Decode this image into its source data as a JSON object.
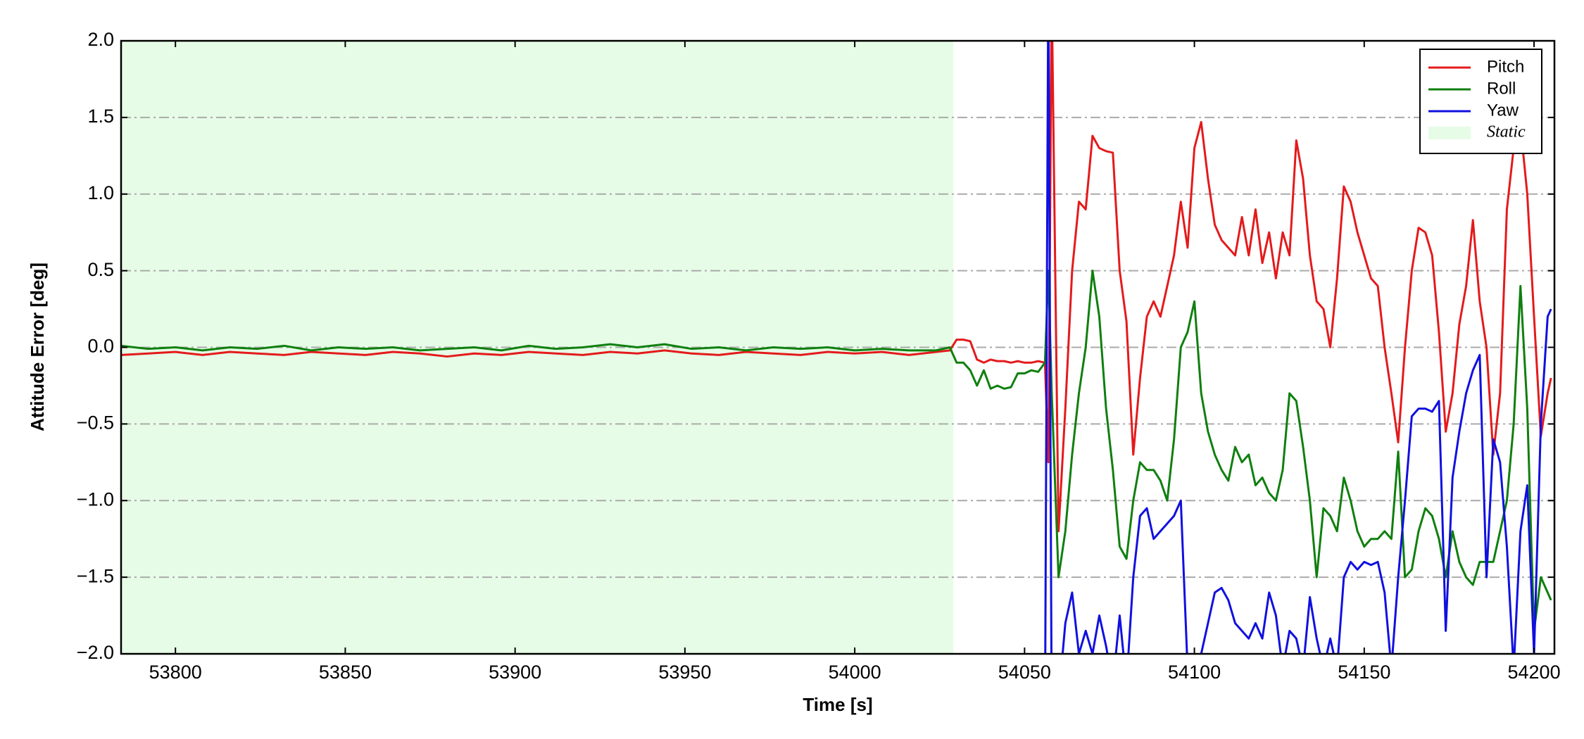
{
  "chart_data": {
    "type": "line",
    "x_label": "Time [s]",
    "y_label": "Attitude Error [deg]",
    "xlim": [
      53784,
      54206
    ],
    "ylim": [
      -2,
      2
    ],
    "xticks": [
      53800,
      53850,
      53900,
      53950,
      54000,
      54050,
      54100,
      54150,
      54200
    ],
    "yticks": [
      {
        "value": -2,
        "label": "−2.0"
      },
      {
        "value": -1.5,
        "label": "−1.5"
      },
      {
        "value": -1,
        "label": "−1.0"
      },
      {
        "value": -0.5,
        "label": "−0.5"
      },
      {
        "value": 0,
        "label": "0.0"
      },
      {
        "value": 0.5,
        "label": "0.5"
      },
      {
        "value": 1,
        "label": "1.0"
      },
      {
        "value": 1.5,
        "label": "1.5"
      },
      {
        "value": 2,
        "label": "2.0"
      }
    ],
    "grid": true,
    "legend": "upper right",
    "shaded_region": {
      "label": "Static",
      "start": 53784,
      "end": 54029,
      "color": "#e6fce6"
    },
    "x": [
      53784,
      53792,
      53800,
      53808,
      53816,
      53824,
      53832,
      53840,
      53848,
      53856,
      53864,
      53872,
      53880,
      53888,
      53896,
      53904,
      53912,
      53920,
      53928,
      53936,
      53944,
      53952,
      53960,
      53968,
      53976,
      53984,
      53992,
      54000,
      54008,
      54016,
      54024,
      54028,
      54030,
      54032,
      54034,
      54036,
      54038,
      54040,
      54042,
      54044,
      54046,
      54048,
      54050,
      54052,
      54054,
      54056,
      54057,
      54058,
      54060,
      54062,
      54064,
      54066,
      54068,
      54070,
      54072,
      54074,
      54076,
      54078,
      54080,
      54082,
      54084,
      54086,
      54088,
      54090,
      54092,
      54094,
      54096,
      54098,
      54100,
      54102,
      54104,
      54106,
      54108,
      54110,
      54112,
      54114,
      54116,
      54118,
      54120,
      54122,
      54124,
      54126,
      54128,
      54130,
      54132,
      54134,
      54136,
      54138,
      54140,
      54142,
      54144,
      54146,
      54148,
      54150,
      54152,
      54154,
      54156,
      54158,
      54160,
      54162,
      54164,
      54166,
      54168,
      54170,
      54172,
      54174,
      54176,
      54178,
      54180,
      54182,
      54184,
      54186,
      54188,
      54190,
      54192,
      54194,
      54196,
      54198,
      54200,
      54202,
      54204,
      54205
    ],
    "series": [
      {
        "name": "Pitch",
        "color": "#e41a1c",
        "values": [
          -0.05,
          -0.04,
          -0.03,
          -0.05,
          -0.03,
          -0.04,
          -0.05,
          -0.03,
          -0.04,
          -0.05,
          -0.03,
          -0.04,
          -0.06,
          -0.04,
          -0.05,
          -0.03,
          -0.04,
          -0.05,
          -0.03,
          -0.04,
          -0.02,
          -0.04,
          -0.05,
          -0.03,
          -0.04,
          -0.05,
          -0.03,
          -0.04,
          -0.03,
          -0.05,
          -0.03,
          -0.02,
          0.05,
          0.05,
          0.04,
          -0.08,
          -0.1,
          -0.08,
          -0.09,
          -0.09,
          -0.1,
          -0.09,
          -0.1,
          -0.1,
          -0.09,
          -0.1,
          -0.75,
          2.3,
          -1.2,
          -0.4,
          0.5,
          0.95,
          0.9,
          1.38,
          1.3,
          1.28,
          1.27,
          0.5,
          0.17,
          -0.7,
          -0.2,
          0.2,
          0.3,
          0.2,
          0.4,
          0.6,
          0.95,
          0.65,
          1.3,
          1.47,
          1.1,
          0.8,
          0.7,
          0.65,
          0.6,
          0.85,
          0.6,
          0.9,
          0.55,
          0.75,
          0.45,
          0.75,
          0.6,
          1.35,
          1.1,
          0.6,
          0.3,
          0.25,
          0.0,
          0.45,
          1.05,
          0.95,
          0.75,
          0.6,
          0.45,
          0.4,
          0.0,
          -0.3,
          -0.62,
          0.0,
          0.5,
          0.78,
          0.75,
          0.6,
          0.1,
          -0.55,
          -0.3,
          0.15,
          0.4,
          0.83,
          0.3,
          0.0,
          -0.7,
          -0.3,
          0.9,
          1.3,
          1.45,
          1.0,
          0.2,
          -0.58,
          -0.3,
          -0.2
        ]
      },
      {
        "name": "Roll",
        "color": "#0f7f0f",
        "values": [
          0.01,
          -0.01,
          0.0,
          -0.02,
          0.0,
          -0.01,
          0.01,
          -0.02,
          0.0,
          -0.01,
          0.0,
          -0.02,
          -0.01,
          0.0,
          -0.02,
          0.01,
          -0.01,
          0.0,
          0.02,
          0.0,
          0.02,
          -0.01,
          0.0,
          -0.02,
          0.0,
          -0.01,
          0.0,
          -0.02,
          -0.01,
          -0.02,
          -0.02,
          0.0,
          -0.1,
          -0.1,
          -0.15,
          -0.25,
          -0.15,
          -0.27,
          -0.25,
          -0.27,
          -0.26,
          -0.17,
          -0.17,
          -0.15,
          -0.16,
          -0.1,
          0.5,
          -0.3,
          -1.5,
          -1.2,
          -0.7,
          -0.3,
          0.0,
          0.5,
          0.2,
          -0.4,
          -0.8,
          -1.3,
          -1.38,
          -1.0,
          -0.75,
          -0.8,
          -0.8,
          -0.87,
          -1.0,
          -0.6,
          0.0,
          0.1,
          0.3,
          -0.3,
          -0.55,
          -0.7,
          -0.8,
          -0.87,
          -0.65,
          -0.75,
          -0.7,
          -0.9,
          -0.85,
          -0.95,
          -1.0,
          -0.8,
          -0.3,
          -0.35,
          -0.65,
          -1.0,
          -1.5,
          -1.05,
          -1.1,
          -1.2,
          -0.85,
          -1.0,
          -1.2,
          -1.3,
          -1.25,
          -1.25,
          -1.2,
          -1.25,
          -0.68,
          -1.5,
          -1.45,
          -1.2,
          -1.05,
          -1.1,
          -1.25,
          -1.5,
          -1.2,
          -1.4,
          -1.5,
          -1.55,
          -1.4,
          -1.4,
          -1.4,
          -1.2,
          -1.0,
          -0.5,
          0.4,
          -0.4,
          -1.85,
          -1.5,
          -1.6,
          -1.65
        ]
      },
      {
        "name": "Yaw",
        "color": "#1010e0",
        "values": [
          null,
          null,
          null,
          null,
          null,
          null,
          null,
          null,
          null,
          null,
          null,
          null,
          null,
          null,
          null,
          null,
          null,
          null,
          null,
          null,
          null,
          null,
          null,
          null,
          null,
          null,
          null,
          null,
          null,
          null,
          null,
          null,
          null,
          null,
          null,
          null,
          null,
          null,
          null,
          null,
          null,
          null,
          null,
          null,
          null,
          -2.5,
          2.5,
          -2.5,
          -2.3,
          -1.8,
          -1.6,
          -2.0,
          -1.85,
          -2.0,
          -1.75,
          -1.95,
          -2.2,
          -1.75,
          -2.2,
          -1.5,
          -1.1,
          -1.05,
          -1.25,
          -1.2,
          -1.15,
          -1.1,
          -1.0,
          -2.1,
          -2.1,
          -2.0,
          -1.8,
          -1.6,
          -1.57,
          -1.65,
          -1.8,
          -1.85,
          -1.9,
          -1.8,
          -1.9,
          -1.6,
          -1.75,
          -2.1,
          -1.85,
          -1.9,
          -2.1,
          -1.63,
          -1.9,
          -2.1,
          -1.9,
          -2.1,
          -1.5,
          -1.4,
          -1.45,
          -1.4,
          -1.42,
          -1.4,
          -1.6,
          -2.1,
          -1.5,
          -1.0,
          -0.45,
          -0.4,
          -0.4,
          -0.42,
          -0.35,
          -1.85,
          -0.85,
          -0.55,
          -0.3,
          -0.15,
          -0.05,
          -1.5,
          -0.6,
          -0.75,
          -1.3,
          -2.1,
          -1.2,
          -0.9,
          -2.0,
          -0.5,
          0.2,
          0.25
        ]
      }
    ]
  }
}
